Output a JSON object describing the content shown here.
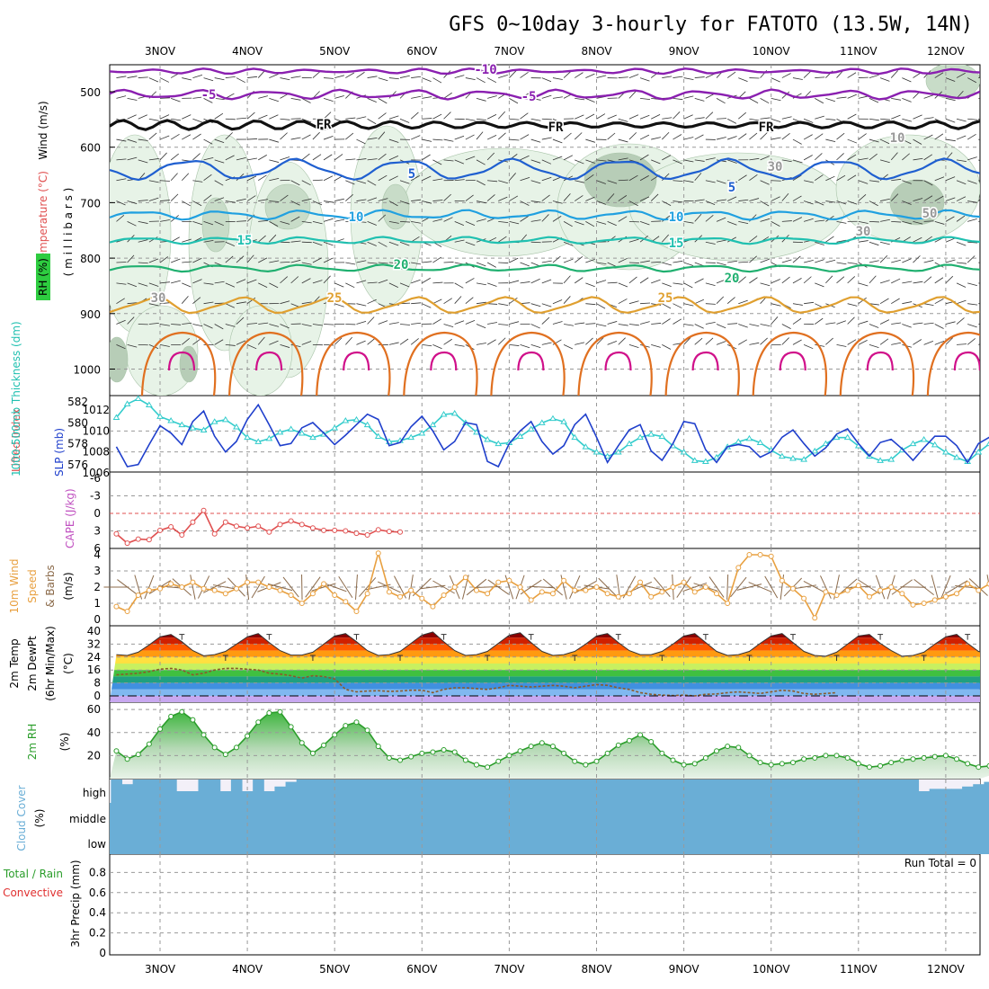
{
  "title": "GFS 0~10day 3-hourly for FATOTO (13.5W, 14N)",
  "date_labels": [
    "3NOV",
    "4NOV",
    "5NOV",
    "6NOV",
    "7NOV",
    "8NOV",
    "9NOV",
    "10NOV",
    "11NOV",
    "12NOV"
  ],
  "panels": {
    "upper": {
      "ylabel_wind": "Wind (m/s)",
      "ylabel_temp": "Temperature (°C)",
      "ylabel_rh": "RH (%)",
      "ylabel_units": "( m i l l i b a r s )",
      "ticks": [
        "500",
        "600",
        "700",
        "800",
        "900",
        "1000"
      ],
      "contour_labels": {
        "t_m10": "-10",
        "t_m5": "-5",
        "fr": "FR",
        "t_5": "5",
        "t_10": "10",
        "t_15": "15",
        "t_20": "20",
        "t_25": "25",
        "rh_30": "30",
        "rh_10": "10",
        "rh_50": "50"
      }
    },
    "slp": {
      "ylabel_thk": "1000-500mb Thickness (dm)",
      "ylabel_slp": "SLP (mb)",
      "left_ticks": [
        "582",
        "580",
        "578",
        "576"
      ],
      "right_ticks": [
        "1012",
        "1010",
        "1008",
        "1006"
      ]
    },
    "li": {
      "ylabel_li": "Lifted Index",
      "ylabel_cape": "CAPE (J/kg)",
      "ticks": [
        "-6",
        "-3",
        "0",
        "3",
        "6"
      ]
    },
    "wind10": {
      "ylabel1": "10m Wind",
      "ylabel2": "Speed",
      "ylabel3": "& Barbs",
      "units": "(m/s)",
      "ticks": [
        "4",
        "3",
        "2",
        "1",
        "0"
      ]
    },
    "temp": {
      "ylabel1": "2m Temp",
      "ylabel2": "2m DewPt",
      "ylabel3": "(6hr Min/Max)",
      "units": "(°C)",
      "ticks": [
        "40",
        "32",
        "24",
        "16",
        "8",
        "0"
      ]
    },
    "rh": {
      "ylabel": "2m RH",
      "units": "(%)",
      "ticks": [
        "60",
        "40",
        "20"
      ]
    },
    "cloud": {
      "ylabel1": "Cloud Cover",
      "units": "(%)",
      "levels": [
        "high",
        "middle",
        "low"
      ]
    },
    "precip": {
      "ylabel_total": "Total / Rain",
      "ylabel_conv": "Convective",
      "ylabel_units": "3hr Precip (mm)",
      "run_total": "Run Total = 0",
      "ticks": [
        "0.8",
        "0.6",
        "0.4",
        "0.2",
        "0"
      ]
    }
  },
  "colors": {
    "thickness": "#33cccc",
    "slp": "#1f3fcc",
    "lifted_index": "#e05050",
    "wind_speed": "#e8a040",
    "rh_line": "#2a9d2a",
    "cloud": "#6aaed6",
    "temp_m10": "#8a1fb0",
    "temp_fr": "#111111",
    "temp_5": "#1f5fd0",
    "temp_10": "#20a0e0",
    "temp_15": "#20c0b0",
    "temp_20": "#20b070",
    "temp_25": "#e0a030",
    "temp_30": "#e07020",
    "temp_35": "#d0108a"
  },
  "chart_data": [
    {
      "type": "line",
      "name": "slp_thickness",
      "x_start": "2NOV 12Z",
      "x_step_hours": 3,
      "series": [
        {
          "name": "1000-500mb Thickness (dm)",
          "values": [
            580.5,
            581.8,
            582.3,
            581.7,
            580.6,
            580.2,
            579.8,
            579.5,
            579.3,
            580.1,
            580.3,
            579.6,
            578.6,
            578.2,
            578.5,
            579.1,
            579.4,
            579.0,
            578.6,
            578.9,
            579.5,
            580.2,
            580.3,
            579.8,
            578.7,
            578.2,
            578.3,
            578.6,
            579.0,
            579.8,
            580.8,
            580.9,
            580.0,
            579.1,
            578.4,
            578.0,
            578.1,
            578.7,
            579.4,
            580.0,
            580.4,
            580.1,
            578.6,
            577.7,
            577.2,
            576.8,
            577.2,
            578.0,
            578.6,
            578.9,
            578.7,
            577.8,
            577.2,
            576.4,
            576.3,
            576.7,
            577.7,
            578.2,
            578.5,
            578.1,
            577.4,
            576.8,
            576.6,
            576.5,
            577.3,
            578.0,
            578.6,
            578.6,
            577.8,
            576.8,
            576.4,
            576.5,
            577.4,
            578.0,
            578.4,
            577.9,
            577.2,
            576.7,
            576.3,
            577.2,
            578.0,
            577.6,
            577.0,
            576.9,
            577.3,
            577.9,
            578.0
          ]
        },
        {
          "name": "SLP (mb)",
          "values": [
            1008.5,
            1006.6,
            1006.8,
            1008.7,
            1010.5,
            1009.8,
            1008.7,
            1010.9,
            1011.9,
            1009.5,
            1008.0,
            1009.0,
            1011.1,
            1012.5,
            1010.6,
            1008.6,
            1008.8,
            1010.3,
            1010.8,
            1009.8,
            1008.7,
            1009.6,
            1010.6,
            1011.6,
            1011.1,
            1008.6,
            1008.9,
            1010.4,
            1011.4,
            1010.0,
            1008.2,
            1009.0,
            1010.8,
            1010.6,
            1007.1,
            1006.6,
            1008.8,
            1010.0,
            1010.9,
            1009.0,
            1007.8,
            1008.6,
            1010.6,
            1011.6,
            1009.4,
            1007.0,
            1008.6,
            1010.1,
            1010.6,
            1008.1,
            1007.2,
            1008.8,
            1010.9,
            1010.7,
            1008.2,
            1007.0,
            1008.5,
            1008.7,
            1008.5,
            1007.5,
            1008.0,
            1009.4,
            1010.1,
            1008.8,
            1007.6,
            1008.4,
            1009.7,
            1010.2,
            1008.8,
            1007.6,
            1008.9,
            1009.2,
            1008.3,
            1007.2,
            1008.4,
            1009.5,
            1009.5,
            1008.6,
            1007.0,
            1008.8,
            1009.4,
            1008.8,
            1007.8,
            1008.8,
            1009.2,
            1008.5,
            1008.7
          ]
        }
      ],
      "ylim_left": [
        576,
        582
      ],
      "ylim_right": [
        1006,
        1012
      ]
    },
    {
      "type": "line",
      "name": "lifted_index",
      "x_start": "2NOV 12Z",
      "x_step_hours": 3,
      "series": [
        {
          "name": "Lifted Index",
          "values": [
            3.5,
            5.1,
            4.4,
            4.5,
            2.9,
            2.3,
            3.7,
            1.5,
            -0.5,
            3.5,
            1.5,
            2.2,
            2.5,
            2.2,
            3.2,
            1.9,
            1.3,
            1.9,
            2.5,
            2.9,
            2.9,
            3.0,
            3.4,
            3.7,
            2.8,
            3.1,
            3.2
          ]
        }
      ],
      "ylim": [
        -6,
        6
      ]
    },
    {
      "type": "line",
      "name": "wind_speed_10m",
      "x_start": "2NOV 12Z",
      "x_step_hours": 3,
      "series": [
        {
          "name": "10m Wind Speed",
          "values": [
            0.8,
            0.5,
            1.5,
            1.8,
            1.9,
            2.2,
            2.0,
            2.3,
            1.9,
            1.8,
            1.6,
            1.9,
            2.3,
            2.3,
            2.0,
            1.8,
            1.5,
            1.0,
            1.6,
            2.2,
            1.5,
            1.1,
            0.5,
            1.6,
            4.1,
            1.7,
            1.4,
            1.8,
            1.3,
            0.8,
            1.5,
            2.0,
            2.6,
            1.8,
            1.6,
            2.3,
            2.4,
            2.0,
            1.2,
            1.7,
            1.6,
            2.4,
            1.8,
            1.8,
            2.0,
            1.6,
            1.4,
            1.6,
            2.3,
            1.4,
            1.7,
            2.0,
            2.3,
            1.7,
            2.0,
            1.6,
            1.0,
            3.2,
            4.0,
            4.0,
            3.9,
            2.4,
            1.9,
            1.3,
            0.1,
            1.7,
            1.5,
            1.8,
            2.1,
            1.4,
            1.8,
            2.0,
            1.6,
            0.9,
            1.0,
            1.2,
            1.4,
            1.6,
            2.2,
            1.8,
            2.2,
            2.0,
            1.5,
            1.3,
            1.9,
            1.2,
            1.7
          ]
        }
      ],
      "ylim": [
        0,
        4
      ]
    },
    {
      "type": "area",
      "name": "temp_2m",
      "x_start": "2NOV 12Z",
      "x_step_hours": 3,
      "series": [
        {
          "name": "2m Temp",
          "values": [
            25.5,
            25.0,
            27.0,
            31.5,
            36.5,
            38.0,
            33.5,
            28.0,
            24.8,
            25.5,
            27.5,
            32.0,
            36.5,
            38.5,
            33.0,
            28.0,
            25.2,
            25.2,
            27.0,
            32.0,
            37.0,
            38.5,
            33.5,
            28.0,
            25.0,
            25.5,
            27.5,
            32.5,
            37.5,
            39.5,
            33.5,
            28.0,
            25.0,
            25.5,
            27.5,
            32.5,
            37.5,
            39.0,
            33.0,
            27.5,
            25.0,
            25.5,
            27.5,
            32.0,
            37.0,
            38.5,
            33.0,
            28.0,
            25.5,
            25.5,
            27.5,
            32.0,
            37.0,
            38.5,
            33.0,
            27.5,
            25.0,
            25.5,
            27.5,
            32.5,
            37.0,
            38.5,
            33.0,
            27.5,
            25.0,
            24.5,
            27.0,
            32.0,
            37.0,
            38.0,
            32.5,
            28.0,
            24.5,
            25.0,
            27.0,
            32.0,
            36.5,
            38.0,
            32.5,
            27.5,
            25.5,
            25.5,
            27.5,
            32.0,
            36.5,
            38.0,
            32.5,
            27.0,
            25.5
          ]
        },
        {
          "name": "2m DewPt",
          "values": [
            13.0,
            13.5,
            14.0,
            15.0,
            16.5,
            17.0,
            16.0,
            13.0,
            14.0,
            16.0,
            17.0,
            17.0,
            16.5,
            16.0,
            14.0,
            13.5,
            12.5,
            11.0,
            12.5,
            12.0,
            10.5,
            4.0,
            2.5,
            3.0,
            3.2,
            2.8,
            3.0,
            3.5,
            3.5,
            2.0,
            4.0,
            5.0,
            5.0,
            4.5,
            4.0,
            5.0,
            6.5,
            6.0,
            5.5,
            6.0,
            6.5,
            6.0,
            5.0,
            6.0,
            7.0,
            6.5,
            5.0,
            4.0,
            2.0,
            1.0,
            0.5,
            0.2,
            0.5,
            0.0,
            1.0,
            1.2,
            2.0,
            2.5,
            2.0,
            1.5,
            2.5,
            3.5,
            3.0,
            1.5,
            1.0,
            1.5,
            2.0
          ]
        }
      ],
      "ylim": [
        -4,
        40
      ]
    },
    {
      "type": "area",
      "name": "rh_2m",
      "x_start": "2NOV 12Z",
      "x_step_hours": 3,
      "series": [
        {
          "name": "2m RH",
          "values": [
            24,
            17,
            21,
            30,
            43,
            54,
            58,
            51,
            38,
            27,
            21,
            27,
            37,
            49,
            57,
            58,
            45,
            31,
            22,
            29,
            38,
            46,
            49,
            42,
            28,
            18,
            16,
            19,
            22,
            23,
            25,
            23,
            16,
            12,
            10,
            15,
            20,
            24,
            28,
            31,
            28,
            22,
            15,
            12,
            15,
            22,
            29,
            33,
            38,
            32,
            22,
            16,
            12,
            13,
            18,
            24,
            28,
            27,
            20,
            14,
            12,
            13,
            14,
            17,
            18,
            20,
            20,
            18,
            13,
            10,
            11,
            14,
            16,
            17,
            18,
            19,
            20,
            17,
            13,
            10,
            11,
            15,
            16,
            18,
            19,
            19,
            20
          ]
        }
      ],
      "ylim": [
        0,
        64
      ]
    },
    {
      "type": "bar",
      "name": "cloud_cover_high",
      "x_start": "2NOV 12Z",
      "x_step_hours": 3,
      "series": [
        {
          "name": "high",
          "values": [
            100,
            80,
            100,
            100,
            100,
            100,
            50,
            50,
            100,
            100,
            50,
            100,
            50,
            100,
            50,
            70,
            90,
            100,
            100,
            100,
            100,
            100,
            100,
            100,
            100,
            100,
            100,
            100,
            100,
            100,
            100,
            100,
            100,
            100,
            100,
            100,
            100,
            100,
            100,
            100,
            100,
            100,
            100,
            100,
            100,
            100,
            100,
            100,
            100,
            100,
            100,
            100,
            100,
            100,
            100,
            100,
            100,
            100,
            100,
            100,
            100,
            100,
            100,
            100,
            100,
            100,
            100,
            100,
            100,
            100,
            100,
            100,
            100,
            100,
            50,
            60,
            60,
            60,
            70,
            80,
            90,
            100,
            100,
            100,
            100,
            100,
            100
          ]
        }
      ],
      "ylim": [
        0,
        100
      ]
    },
    {
      "type": "bar",
      "name": "precip_3hr",
      "x_start": "2NOV 12Z",
      "x_step_hours": 3,
      "series": [],
      "ylim": [
        0,
        1
      ]
    }
  ]
}
